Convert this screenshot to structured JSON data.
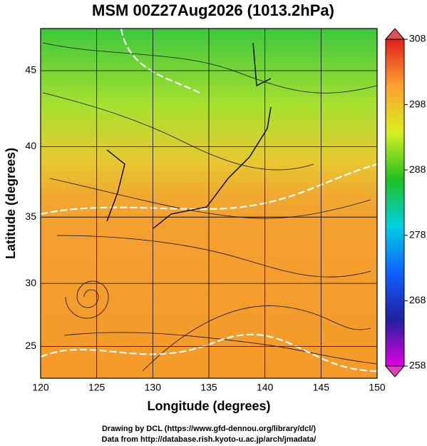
{
  "chart_data": {
    "type": "map",
    "title": "MSM 00Z27Aug2026 (1013.2hPa)",
    "xlabel": "Longitude (degrees)",
    "ylabel": "Latitude  (degrees)",
    "xlim": [
      120,
      150
    ],
    "xticks": [
      120,
      125,
      130,
      135,
      140,
      145,
      150
    ],
    "ylim": [
      22.4,
      47.6
    ],
    "yticks": [
      25,
      30,
      35,
      40,
      45
    ],
    "projection": "mercator",
    "grid": true,
    "colorbar": {
      "lim": [
        258,
        308
      ],
      "ticks": [
        258,
        268,
        278,
        288,
        298,
        308
      ],
      "colors": [
        "#e000e0",
        "#2020a0",
        "#1060ff",
        "#00d0e0",
        "#20c020",
        "#d8f020",
        "#ffa030",
        "#e02020"
      ]
    },
    "footer": [
      "Drawing by DCL (https://www.gfd-dennou.org/library/dcl/)",
      "Data from http://database.rish.kyoto-u.ac.jp/arch/jmadata/"
    ]
  }
}
